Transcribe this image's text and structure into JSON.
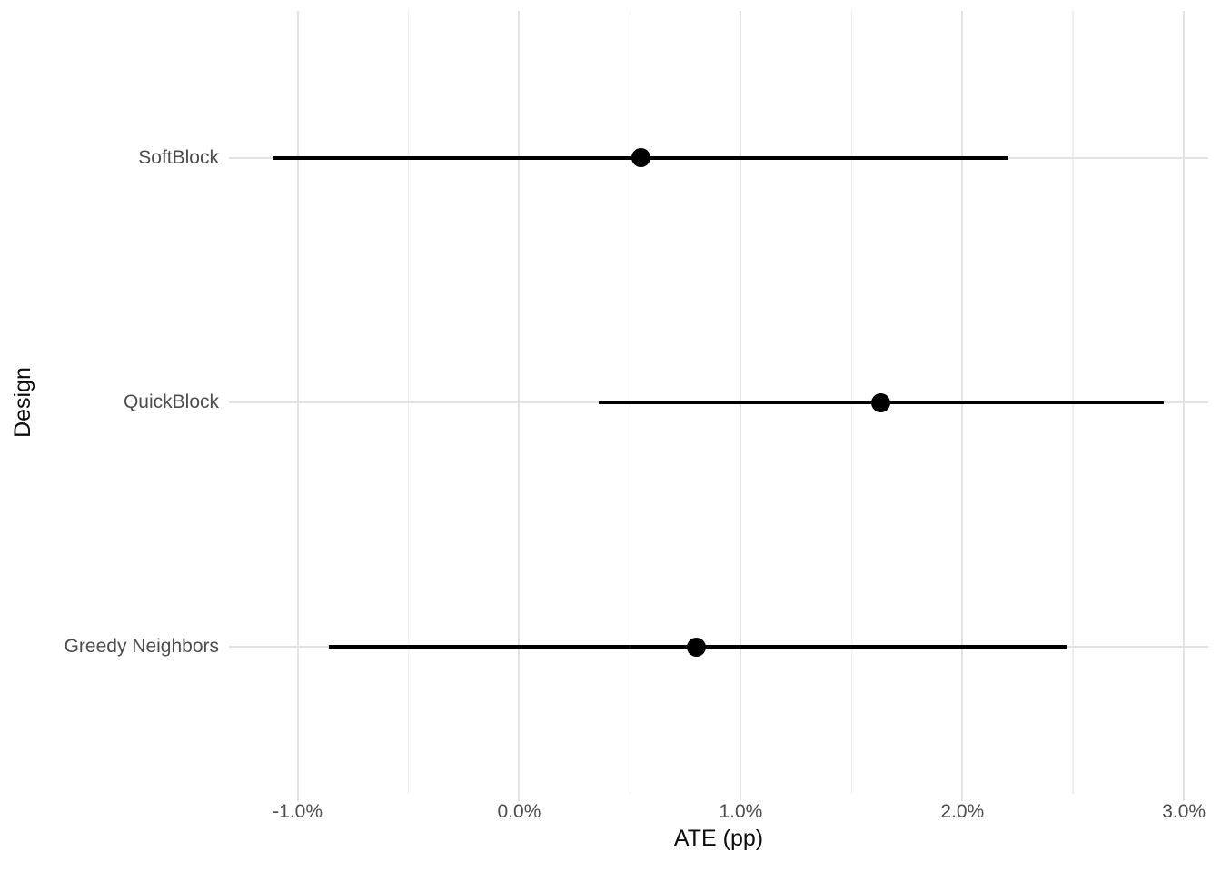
{
  "figure": {
    "background": "#ffffff"
  },
  "chart_data": {
    "type": "pointrange",
    "orientation": "horizontal",
    "title": "",
    "xlabel": "ATE (pp)",
    "ylabel": "Design",
    "xlim": [
      -1.31,
      3.11
    ],
    "x_major_ticks": [
      {
        "value": -1.0,
        "label": "-1.0%"
      },
      {
        "value": 0.0,
        "label": "0.0%"
      },
      {
        "value": 1.0,
        "label": "1.0%"
      },
      {
        "value": 2.0,
        "label": "2.0%"
      },
      {
        "value": 3.0,
        "label": "3.0%"
      }
    ],
    "x_minor_ticks": [
      -0.5,
      0.5,
      1.5,
      2.5
    ],
    "categories": [
      "SoftBlock",
      "QuickBlock",
      "Greedy Neighbors"
    ],
    "series": [
      {
        "design": "SoftBlock",
        "estimate_pp": 0.55,
        "ci_lower_pp": -1.11,
        "ci_upper_pp": 2.21
      },
      {
        "design": "QuickBlock",
        "estimate_pp": 1.63,
        "ci_lower_pp": 0.36,
        "ci_upper_pp": 2.91
      },
      {
        "design": "Greedy Neighbors",
        "estimate_pp": 0.8,
        "ci_lower_pp": -0.86,
        "ci_upper_pp": 2.47
      }
    ],
    "grid": true,
    "legend": false,
    "colors": {
      "point_range": "#000000",
      "grid_major": "#e3e3e3",
      "grid_minor": "#eeeeee",
      "tick_text": "#4d4d4d",
      "axis_title_text": "#0d0d0d",
      "background": "#ffffff"
    }
  }
}
